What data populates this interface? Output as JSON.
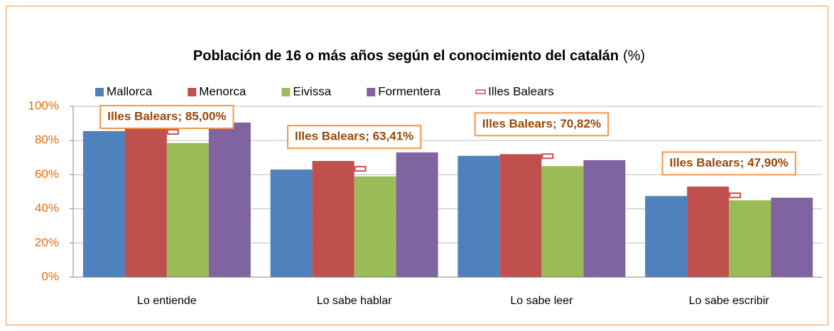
{
  "chart_data": {
    "type": "bar",
    "title": "Población de 16 o más años según el conocimiento del catalán",
    "title_unit": "(%)",
    "categories": [
      "Lo entiende",
      "Lo sabe hablar",
      "Lo sabe leer",
      "Lo sabe escribir"
    ],
    "series": [
      {
        "name": "Mallorca",
        "color": "#4f81bd",
        "values": [
          85.5,
          63,
          71,
          47.5
        ]
      },
      {
        "name": "Menorca",
        "color": "#c0504d",
        "values": [
          89,
          68,
          72,
          53
        ]
      },
      {
        "name": "Eivissa",
        "color": "#9bbb59",
        "values": [
          78.5,
          59,
          65,
          45
        ]
      },
      {
        "name": "Formentera",
        "color": "#8064a2",
        "values": [
          90.5,
          73,
          68.5,
          46.5
        ]
      }
    ],
    "markers": {
      "name": "Illes Balears",
      "color": "#c0504d",
      "values": [
        85,
        63.41,
        70.82,
        47.9
      ],
      "value_labels": [
        "Illes Balears; 85,00%",
        "Illes Balears; 63,41%",
        "Illes Balears; 70,82%",
        "Illes Balears; 47,90%"
      ]
    },
    "ylim": [
      0,
      100
    ],
    "yticks": [
      {
        "value": 0,
        "label": "0%"
      },
      {
        "value": 20,
        "label": "20%"
      },
      {
        "value": 40,
        "label": "40%"
      },
      {
        "value": 60,
        "label": "60%"
      },
      {
        "value": 80,
        "label": "80%"
      },
      {
        "value": 100,
        "label": "100%"
      }
    ],
    "grid": true
  }
}
